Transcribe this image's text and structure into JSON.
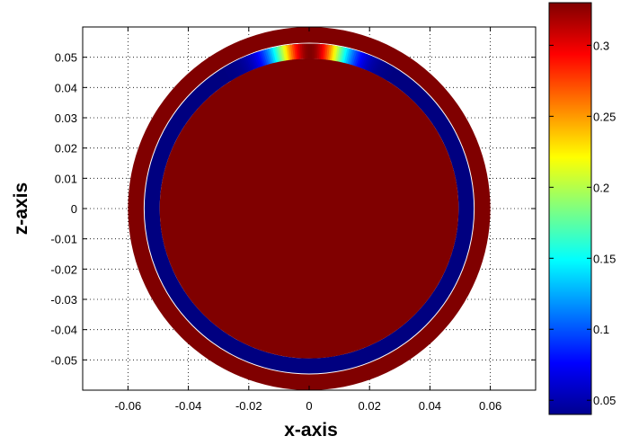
{
  "chart_data": {
    "type": "heatmap",
    "title": "",
    "xlabel": "x-axis",
    "ylabel": "z-axis",
    "xlim": [
      -0.075,
      0.075
    ],
    "ylim": [
      -0.06,
      0.06
    ],
    "grid": true,
    "grid_style": "dotted",
    "xticks": [
      -0.06,
      -0.04,
      -0.02,
      0,
      0.02,
      0.04,
      0.06
    ],
    "xtick_labels": [
      "-0.06",
      "-0.04",
      "-0.02",
      "0",
      "0.02",
      "0.04",
      "0.06"
    ],
    "yticks": [
      0.05,
      0.04,
      0.03,
      0.02,
      0.01,
      0,
      -0.01,
      -0.02,
      -0.03,
      -0.04,
      -0.05
    ],
    "ytick_labels": [
      "0.05",
      "0.04",
      "0.03",
      "0.02",
      "0.01",
      "0",
      "-0.01",
      "-0.02",
      "-0.03",
      "-0.04",
      "-0.05"
    ],
    "regions": [
      {
        "shape": "disk",
        "outer_radius": 0.06,
        "value": 0.33
      },
      {
        "shape": "annulus",
        "inner_radius": 0.0495,
        "outer_radius": 0.0545,
        "value": 0.04,
        "hotspot": {
          "angle_deg": 90,
          "peak_value": 0.33,
          "half_width_deg": 13
        }
      },
      {
        "shape": "disk",
        "outer_radius": 0.0495,
        "value": 0.33
      }
    ],
    "colorbar": {
      "colormap": "jet",
      "range": [
        0.04,
        0.33
      ],
      "ticks": [
        0.05,
        0.1,
        0.15,
        0.2,
        0.25,
        0.3
      ],
      "tick_labels": [
        "0.05",
        "0.1",
        "0.15",
        "0.2",
        "0.25",
        "0.3"
      ],
      "placement": "right"
    }
  }
}
